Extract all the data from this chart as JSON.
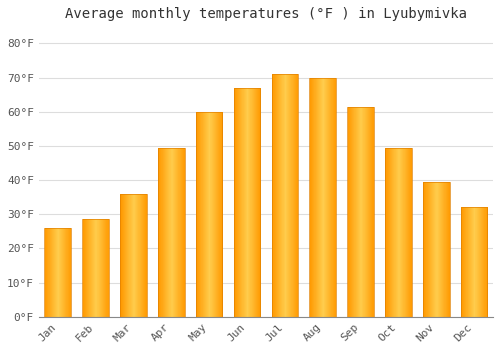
{
  "title": "Average monthly temperatures (°F ) in Lyubymivka",
  "months": [
    "Jan",
    "Feb",
    "Mar",
    "Apr",
    "May",
    "Jun",
    "Jul",
    "Aug",
    "Sep",
    "Oct",
    "Nov",
    "Dec"
  ],
  "values": [
    26,
    28.5,
    36,
    49.5,
    60,
    67,
    71,
    70,
    61.5,
    49.5,
    39.5,
    32
  ],
  "bar_color_main": "#FFA500",
  "bar_color_edge": "#E08000",
  "background_color": "#FFFFFF",
  "grid_color": "#DDDDDD",
  "ylim": [
    0,
    85
  ],
  "yticks": [
    0,
    10,
    20,
    30,
    40,
    50,
    60,
    70,
    80
  ],
  "ytick_labels": [
    "0°F",
    "10°F",
    "20°F",
    "30°F",
    "40°F",
    "50°F",
    "60°F",
    "70°F",
    "80°F"
  ],
  "title_fontsize": 10,
  "tick_fontsize": 8,
  "font_family": "monospace"
}
